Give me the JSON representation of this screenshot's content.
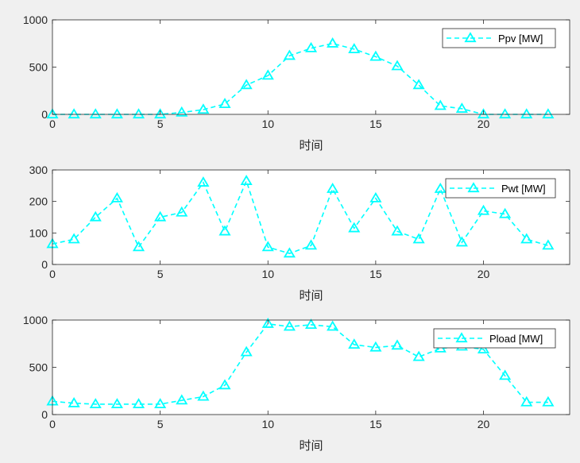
{
  "chart_data": [
    {
      "type": "line",
      "xlabel": "时间",
      "xlim": [
        0,
        24
      ],
      "xticks": [
        "0",
        "5",
        "10",
        "15",
        "20"
      ],
      "xtick_values": [
        0,
        5,
        10,
        15,
        20
      ],
      "ylim": [
        0,
        1000
      ],
      "yticks": [
        "0",
        "500",
        "1000"
      ],
      "ytick_values": [
        0,
        500,
        1000
      ],
      "legend": "top-right",
      "grid": false,
      "series": [
        {
          "name": "Ppv [MW]",
          "color": "#00ffff",
          "line_style": "dashed",
          "marker": "triangle",
          "x": [
            0,
            1,
            2,
            3,
            4,
            5,
            6,
            7,
            8,
            9,
            10,
            11,
            12,
            13,
            14,
            15,
            16,
            17,
            18,
            19,
            20,
            21,
            22,
            23
          ],
          "values": [
            0,
            0,
            0,
            0,
            0,
            0,
            20,
            50,
            110,
            310,
            410,
            620,
            700,
            750,
            690,
            610,
            510,
            310,
            90,
            60,
            0,
            0,
            0,
            0
          ]
        }
      ]
    },
    {
      "type": "line",
      "xlabel": "时间",
      "xlim": [
        0,
        24
      ],
      "xticks": [
        "0",
        "5",
        "10",
        "15",
        "20"
      ],
      "xtick_values": [
        0,
        5,
        10,
        15,
        20
      ],
      "ylim": [
        0,
        300
      ],
      "yticks": [
        "0",
        "100",
        "200",
        "300"
      ],
      "ytick_values": [
        0,
        100,
        200,
        300
      ],
      "legend": "top-right",
      "grid": false,
      "series": [
        {
          "name": "Pwt [MW]",
          "color": "#00ffff",
          "line_style": "dashed",
          "marker": "triangle",
          "x": [
            0,
            1,
            2,
            3,
            4,
            5,
            6,
            7,
            8,
            9,
            10,
            11,
            12,
            13,
            14,
            15,
            16,
            17,
            18,
            19,
            20,
            21,
            22,
            23
          ],
          "values": [
            65,
            80,
            150,
            210,
            55,
            150,
            165,
            260,
            105,
            265,
            55,
            35,
            60,
            240,
            115,
            210,
            105,
            80,
            240,
            70,
            170,
            160,
            80,
            60
          ]
        }
      ]
    },
    {
      "type": "line",
      "xlabel": "时间",
      "xlim": [
        0,
        24
      ],
      "xticks": [
        "0",
        "5",
        "10",
        "15",
        "20"
      ],
      "xtick_values": [
        0,
        5,
        10,
        15,
        20
      ],
      "ylim": [
        0,
        1000
      ],
      "yticks": [
        "0",
        "500",
        "1000"
      ],
      "ytick_values": [
        0,
        500,
        1000
      ],
      "legend": "top-right",
      "grid": false,
      "series": [
        {
          "name": "Pload [MW]",
          "color": "#00ffff",
          "line_style": "dashed",
          "marker": "triangle",
          "x": [
            0,
            1,
            2,
            3,
            4,
            5,
            6,
            7,
            8,
            9,
            10,
            11,
            12,
            13,
            14,
            15,
            16,
            17,
            18,
            19,
            20,
            21,
            22,
            23
          ],
          "values": [
            140,
            120,
            110,
            110,
            110,
            110,
            150,
            190,
            310,
            660,
            960,
            930,
            950,
            930,
            740,
            710,
            730,
            610,
            700,
            720,
            690,
            410,
            130,
            130
          ]
        }
      ]
    }
  ]
}
